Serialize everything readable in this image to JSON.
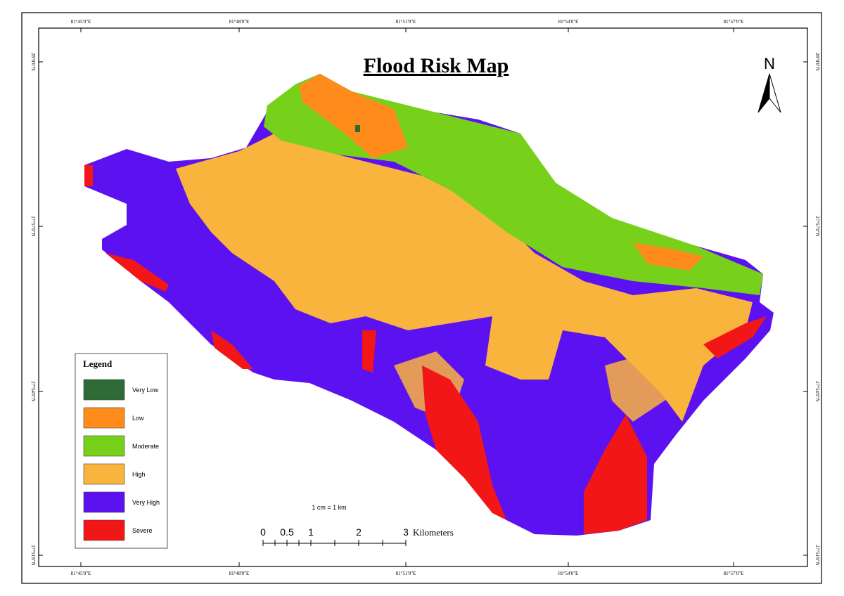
{
  "title": "Flood Risk Map",
  "north": "N",
  "graticule": {
    "top": [
      "81°45'0\"E",
      "81°48'0\"E",
      "81°51'0\"E",
      "81°54'0\"E",
      "81°57'0\"E"
    ],
    "bottom": [
      "81°45'0\"E",
      "81°48'0\"E",
      "81°51'0\"E",
      "81°54'0\"E",
      "81°57'0\"E"
    ],
    "left": [
      "28°0'0\"N",
      "27°57'0\"N",
      "27°54'0\"N",
      "27°51'0\"N"
    ],
    "right": [
      "28°0'0\"N",
      "27°57'0\"N",
      "27°54'0\"N",
      "27°51'0\"N"
    ]
  },
  "legend": {
    "title": "Legend",
    "items": [
      {
        "label": "Very Low",
        "color": "#2f6b36"
      },
      {
        "label": "Low",
        "color": "#ff8c1a"
      },
      {
        "label": "Moderate",
        "color": "#77d11a"
      },
      {
        "label": "High",
        "color": "#f9b43e"
      },
      {
        "label": "Very High",
        "color": "#5c12f0"
      },
      {
        "label": "Severe",
        "color": "#f21616"
      }
    ]
  },
  "scale": {
    "ratio": "1 cm = 1 km",
    "labels": [
      "0",
      "0.5",
      "1",
      "2",
      "3"
    ],
    "unit": "Kilometers"
  }
}
